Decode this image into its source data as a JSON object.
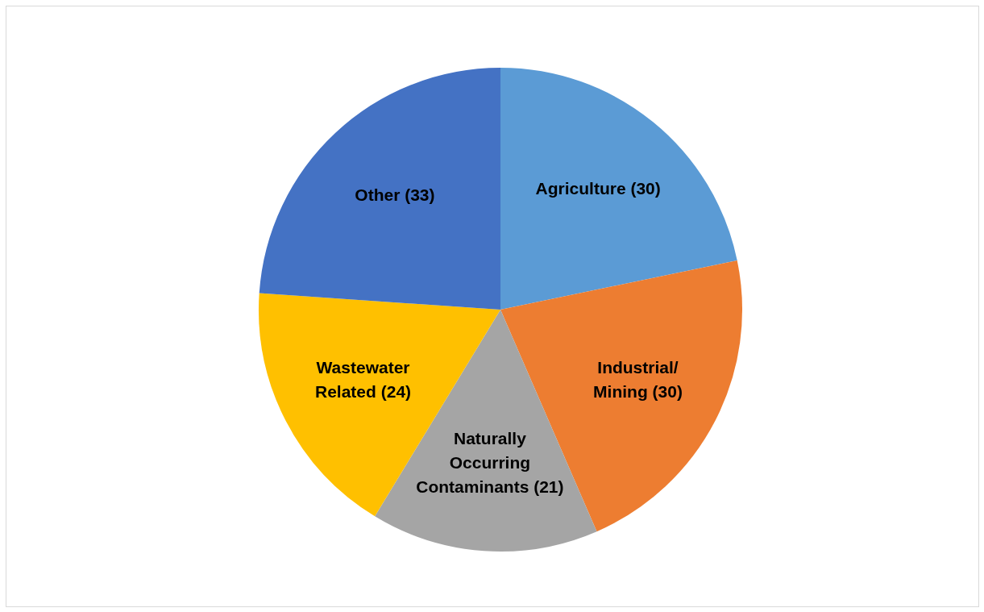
{
  "chart_data": {
    "type": "pie",
    "categories": [
      "Agriculture",
      "Industrial/\nMining",
      "Naturally\nOccurring\nContaminants",
      "Wastewater\nRelated",
      "Other"
    ],
    "values": [
      30,
      30,
      21,
      24,
      33
    ],
    "value_labels": [
      "(30)",
      "(30)",
      "(21)",
      "(24)",
      "(33)"
    ],
    "colors": [
      "#5b9bd5",
      "#ed7d31",
      "#a5a5a5",
      "#ffc000",
      "#4472c4"
    ],
    "legend": false
  }
}
